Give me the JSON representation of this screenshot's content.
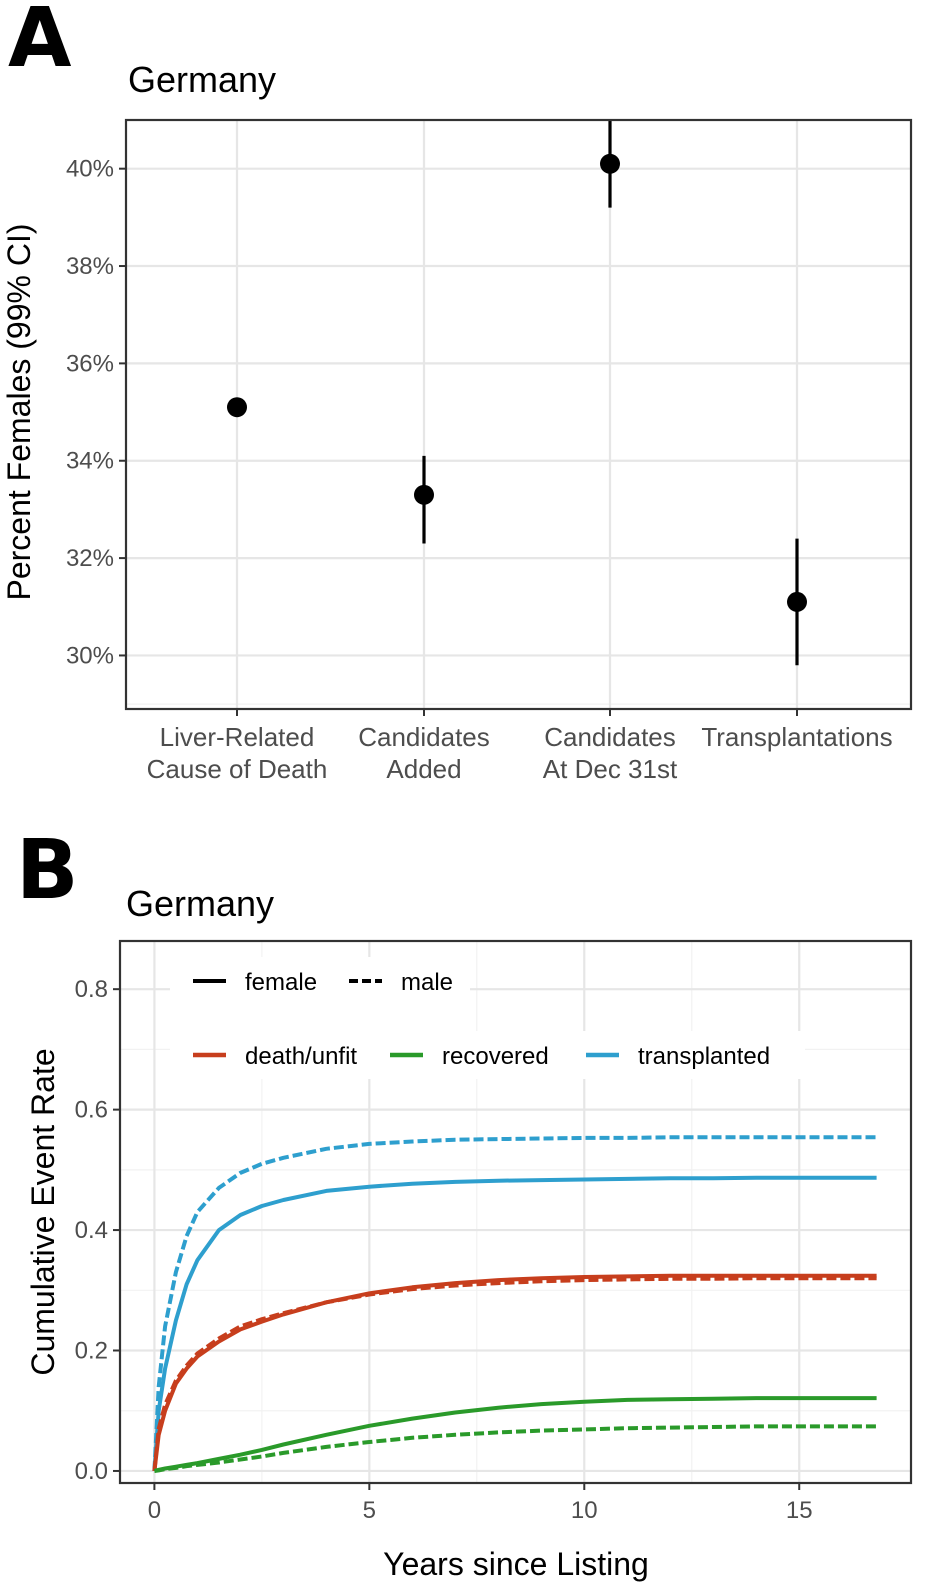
{
  "figure": {
    "panel_a": {
      "letter": "A"
    },
    "panel_b": {
      "letter": "B"
    }
  },
  "chart_data": [
    {
      "type": "scatter",
      "title": "Germany",
      "ylabel": "Percent Females (99% CI)",
      "xlabel": "",
      "ylim": [
        28.9,
        41.0
      ],
      "yticks": [
        30,
        32,
        34,
        36,
        38,
        40
      ],
      "ytick_labels": [
        "30%",
        "32%",
        "34%",
        "36%",
        "38%",
        "40%"
      ],
      "grid": true,
      "categories": [
        [
          "Liver-Related",
          "Cause of Death"
        ],
        [
          "Candidates",
          "Added"
        ],
        [
          "Candidates",
          "At Dec 31st"
        ],
        [
          "Transplantations"
        ]
      ],
      "series": [
        {
          "name": "Percent Females",
          "values": [
            35.1,
            33.3,
            40.1,
            31.1
          ],
          "ci_low": [
            35.1,
            32.3,
            39.2,
            29.8
          ],
          "ci_high": [
            35.1,
            34.1,
            41.0,
            32.4
          ]
        }
      ]
    },
    {
      "type": "line",
      "title": "Germany",
      "xlabel": "Years since Listing",
      "ylabel": "Cumulative Event Rate",
      "xlim": [
        -0.8,
        17.6
      ],
      "ylim": [
        -0.02,
        0.88
      ],
      "xticks": [
        0,
        5,
        10,
        15
      ],
      "xtick_labels": [
        "0",
        "5",
        "10",
        "15"
      ],
      "yticks": [
        0.0,
        0.2,
        0.4,
        0.6,
        0.8
      ],
      "ytick_labels": [
        "0.0",
        "0.2",
        "0.4",
        "0.6",
        "0.8"
      ],
      "grid": true,
      "legend_position": "top-left inside",
      "legend_sex": [
        {
          "label": "female",
          "linetype": "solid"
        },
        {
          "label": "male",
          "linetype": "dashed"
        }
      ],
      "legend_outcome": [
        {
          "label": "death/unfit",
          "color": "#C73E1D"
        },
        {
          "label": "recovered",
          "color": "#2A9A2A"
        },
        {
          "label": "transplanted",
          "color": "#2E9FCE"
        }
      ],
      "colors": {
        "death_unfit": "#C73E1D",
        "recovered": "#2A9A2A",
        "transplanted": "#2E9FCE"
      },
      "x": [
        0,
        0.1,
        0.25,
        0.5,
        0.75,
        1,
        1.5,
        2,
        2.5,
        3,
        4,
        5,
        6,
        7,
        8,
        9,
        10,
        11,
        12,
        13,
        14,
        15,
        16,
        16.8
      ],
      "series": [
        {
          "name": "transplanted",
          "sex": "female",
          "color": "#2E9FCE",
          "linetype": "solid",
          "values": [
            0,
            0.1,
            0.17,
            0.25,
            0.31,
            0.35,
            0.4,
            0.425,
            0.44,
            0.45,
            0.465,
            0.472,
            0.477,
            0.48,
            0.482,
            0.483,
            0.484,
            0.485,
            0.486,
            0.486,
            0.487,
            0.487,
            0.487,
            0.487
          ]
        },
        {
          "name": "transplanted",
          "sex": "male",
          "color": "#2E9FCE",
          "linetype": "dashed",
          "values": [
            0,
            0.14,
            0.24,
            0.33,
            0.39,
            0.43,
            0.47,
            0.495,
            0.51,
            0.52,
            0.535,
            0.543,
            0.547,
            0.55,
            0.551,
            0.552,
            0.553,
            0.553,
            0.554,
            0.554,
            0.554,
            0.554,
            0.554,
            0.554
          ]
        },
        {
          "name": "death/unfit",
          "sex": "female",
          "color": "#C73E1D",
          "linetype": "solid",
          "values": [
            0,
            0.06,
            0.1,
            0.145,
            0.17,
            0.19,
            0.215,
            0.235,
            0.248,
            0.26,
            0.28,
            0.295,
            0.305,
            0.312,
            0.317,
            0.32,
            0.322,
            0.323,
            0.324,
            0.324,
            0.324,
            0.324,
            0.324,
            0.324
          ]
        },
        {
          "name": "death/unfit",
          "sex": "male",
          "color": "#C73E1D",
          "linetype": "dashed",
          "values": [
            0,
            0.07,
            0.11,
            0.15,
            0.175,
            0.195,
            0.22,
            0.24,
            0.252,
            0.262,
            0.28,
            0.293,
            0.302,
            0.308,
            0.312,
            0.315,
            0.317,
            0.318,
            0.319,
            0.319,
            0.32,
            0.32,
            0.32,
            0.32
          ]
        },
        {
          "name": "recovered",
          "sex": "female",
          "color": "#2A9A2A",
          "linetype": "solid",
          "values": [
            0,
            0.002,
            0.004,
            0.007,
            0.01,
            0.013,
            0.02,
            0.027,
            0.035,
            0.044,
            0.06,
            0.075,
            0.087,
            0.097,
            0.105,
            0.111,
            0.115,
            0.118,
            0.119,
            0.12,
            0.121,
            0.121,
            0.121,
            0.121
          ]
        },
        {
          "name": "recovered",
          "sex": "male",
          "color": "#2A9A2A",
          "linetype": "dashed",
          "values": [
            0,
            0.001,
            0.003,
            0.005,
            0.008,
            0.01,
            0.014,
            0.019,
            0.024,
            0.03,
            0.04,
            0.048,
            0.055,
            0.06,
            0.064,
            0.067,
            0.069,
            0.071,
            0.072,
            0.073,
            0.074,
            0.074,
            0.074,
            0.074
          ]
        }
      ]
    }
  ]
}
